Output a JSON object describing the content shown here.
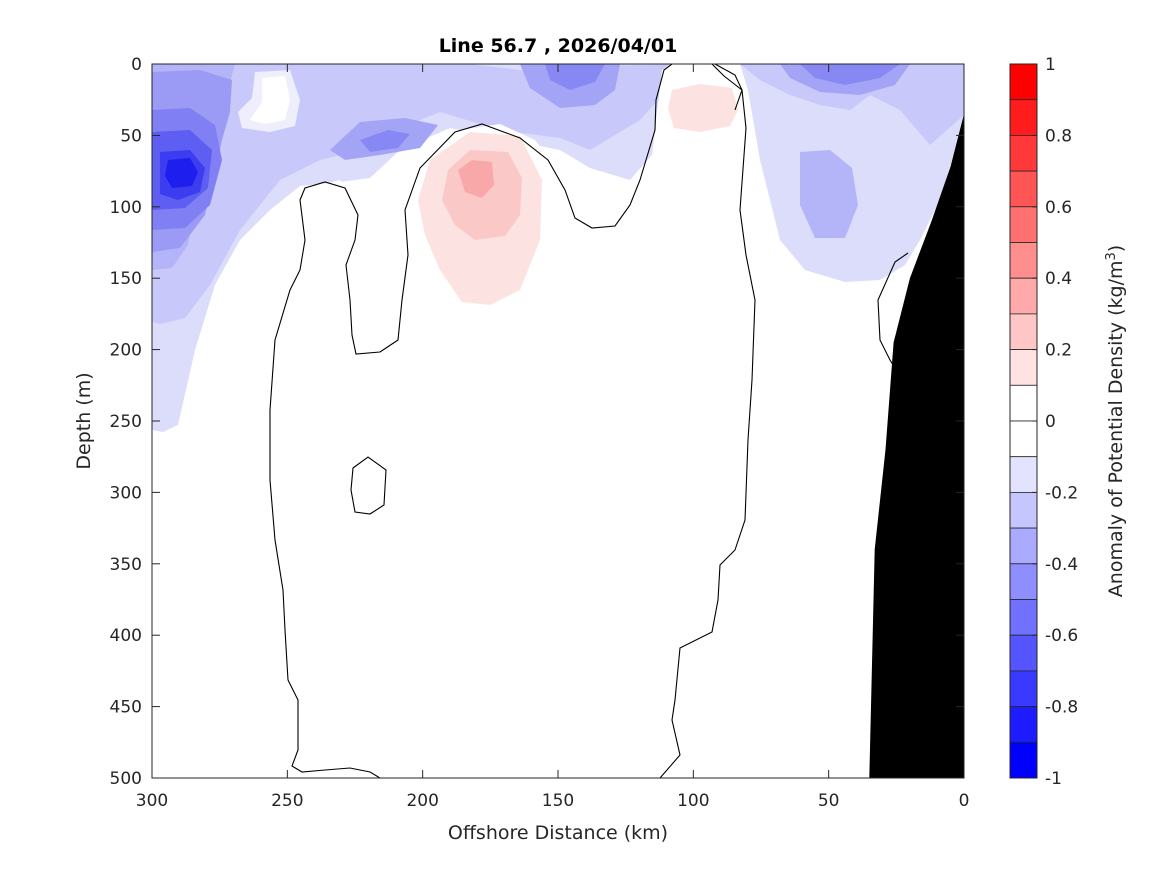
{
  "chart_data": {
    "type": "heatmap",
    "subtype": "filled-contour section",
    "title": "Line 56.7 , 2026/04/01",
    "xlabel": "Offshore Distance (km)",
    "ylabel": "Depth (m)",
    "colorbar_label": "Anomaly of Potential Density (kg/m",
    "colorbar_label_superscript": "3",
    "colorbar_label_close": ")",
    "xlim": [
      300,
      0
    ],
    "ylim": [
      0,
      500
    ],
    "x_direction": "reversed",
    "y_direction": "reversed",
    "x_ticks": [
      300,
      250,
      200,
      150,
      100,
      50,
      0
    ],
    "x_tick_labels": [
      "300",
      "250",
      "200",
      "150",
      "100",
      "50",
      "0"
    ],
    "y_ticks": [
      0,
      50,
      100,
      150,
      200,
      250,
      300,
      350,
      400,
      450,
      500
    ],
    "y_tick_labels": [
      "0",
      "50",
      "100",
      "150",
      "200",
      "250",
      "300",
      "350",
      "400",
      "450",
      "500"
    ],
    "clim": [
      -1,
      1
    ],
    "colorbar_ticks": [
      1,
      0.8,
      0.6,
      0.4,
      0.2,
      0,
      -0.2,
      -0.4,
      -0.6,
      -0.8,
      -1
    ],
    "colorbar_tick_labels": [
      "1",
      "0.8",
      "0.6",
      "0.4",
      "0.2",
      "0",
      "-0.2",
      "-0.4",
      "-0.6",
      "-0.8",
      "-1"
    ],
    "colorbar_levels": 20,
    "colors": {
      "positive_max": "#ff0000",
      "negative_max": "#0000ff",
      "zero": "#ffffff",
      "bathymetry": "#000000",
      "contour_line": "#000000"
    },
    "features": [
      {
        "name": "strong negative core",
        "x_km": 288,
        "depth_m": 78,
        "anomaly": -0.85
      },
      {
        "name": "negative surface patch",
        "x_km": 140,
        "depth_m": 18,
        "anomaly": -0.45
      },
      {
        "name": "negative surface patch",
        "x_km": 42,
        "depth_m": 12,
        "anomaly": -0.45
      },
      {
        "name": "positive core",
        "x_km": 177,
        "depth_m": 82,
        "anomaly": 0.3
      },
      {
        "name": "positive patch",
        "x_km": 97,
        "depth_m": 30,
        "anomaly": 0.12
      }
    ],
    "bathymetry": {
      "x_km": [
        0,
        0,
        5,
        12,
        20,
        26,
        29,
        33,
        35
      ],
      "depth_m": [
        500,
        35,
        72,
        110,
        150,
        195,
        270,
        340,
        500
      ]
    }
  }
}
